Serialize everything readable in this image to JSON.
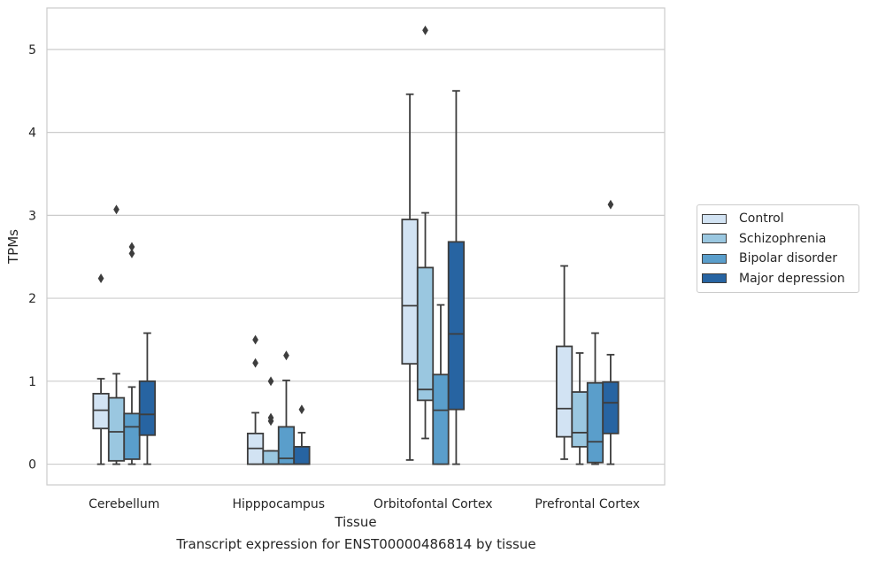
{
  "chart_data": {
    "type": "box",
    "xlabel": "Tissue",
    "ylabel": "TPMs",
    "caption": "Transcript expression for ENST00000486814 by tissue",
    "ylim": [
      -0.25,
      5.5
    ],
    "yticks": [
      0,
      1,
      2,
      3,
      4,
      5
    ],
    "grid": "horizontal",
    "legend_position": "right",
    "categories": [
      "Cerebellum",
      "Hipppocampus",
      "Orbitofontal Cortex",
      "Prefrontal Cortex"
    ],
    "series": [
      {
        "name": "Control",
        "color": "#d2e3f3",
        "boxes": [
          {
            "whisker_low": 0.0,
            "q1": 0.43,
            "median": 0.65,
            "q3": 0.85,
            "whisker_high": 1.03,
            "outliers": [
              2.24
            ]
          },
          {
            "whisker_low": 0.0,
            "q1": 0.0,
            "median": 0.19,
            "q3": 0.37,
            "whisker_high": 0.62,
            "outliers": [
              1.22,
              1.5
            ]
          },
          {
            "whisker_low": 0.05,
            "q1": 1.21,
            "median": 1.91,
            "q3": 2.95,
            "whisker_high": 4.46,
            "outliers": []
          },
          {
            "whisker_low": 0.06,
            "q1": 0.33,
            "median": 0.67,
            "q3": 1.42,
            "whisker_high": 2.39,
            "outliers": []
          }
        ]
      },
      {
        "name": "Schizophrenia",
        "color": "#9ac7e0",
        "boxes": [
          {
            "whisker_low": 0.0,
            "q1": 0.04,
            "median": 0.39,
            "q3": 0.8,
            "whisker_high": 1.09,
            "outliers": [
              3.07
            ]
          },
          {
            "whisker_low": 0.0,
            "q1": 0.0,
            "median": 0.0,
            "q3": 0.16,
            "whisker_high": 0.16,
            "outliers": [
              0.52,
              0.56,
              1.0
            ]
          },
          {
            "whisker_low": 0.31,
            "q1": 0.77,
            "median": 0.9,
            "q3": 2.37,
            "whisker_high": 3.03,
            "outliers": [
              5.23
            ]
          },
          {
            "whisker_low": 0.0,
            "q1": 0.21,
            "median": 0.38,
            "q3": 0.87,
            "whisker_high": 1.34,
            "outliers": []
          }
        ]
      },
      {
        "name": "Bipolar disorder",
        "color": "#5a9ecb",
        "boxes": [
          {
            "whisker_low": 0.0,
            "q1": 0.06,
            "median": 0.45,
            "q3": 0.61,
            "whisker_high": 0.93,
            "outliers": [
              2.54,
              2.62
            ]
          },
          {
            "whisker_low": 0.0,
            "q1": 0.0,
            "median": 0.07,
            "q3": 0.45,
            "whisker_high": 1.01,
            "outliers": [
              1.31
            ]
          },
          {
            "whisker_low": 0.0,
            "q1": 0.0,
            "median": 0.65,
            "q3": 1.08,
            "whisker_high": 1.92,
            "outliers": []
          },
          {
            "whisker_low": 0.0,
            "q1": 0.02,
            "median": 0.27,
            "q3": 0.98,
            "whisker_high": 1.58,
            "outliers": []
          }
        ]
      },
      {
        "name": "Major depression",
        "color": "#2764a2",
        "boxes": [
          {
            "whisker_low": 0.0,
            "q1": 0.35,
            "median": 0.6,
            "q3": 1.0,
            "whisker_high": 1.58,
            "outliers": []
          },
          {
            "whisker_low": 0.0,
            "q1": 0.0,
            "median": 0.0,
            "q3": 0.21,
            "whisker_high": 0.38,
            "outliers": [
              0.66
            ]
          },
          {
            "whisker_low": 0.0,
            "q1": 0.66,
            "median": 1.57,
            "q3": 2.68,
            "whisker_high": 4.5,
            "outliers": []
          },
          {
            "whisker_low": 0.0,
            "q1": 0.37,
            "median": 0.74,
            "q3": 0.99,
            "whisker_high": 1.32,
            "outliers": [
              3.13
            ]
          }
        ]
      }
    ]
  }
}
